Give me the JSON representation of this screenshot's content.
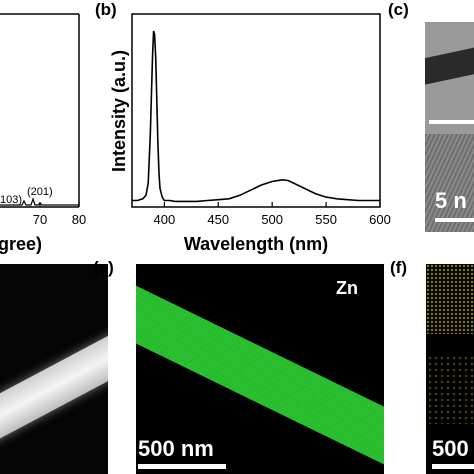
{
  "panel_labels": {
    "b": "(b)",
    "c": "(c)",
    "e": "(e)",
    "f": "(f)"
  },
  "panel_a": {
    "xlabel": "gree)",
    "xticks": [
      "70",
      "80"
    ],
    "peak_labels": [
      "103)",
      "(201)"
    ]
  },
  "panel_c": {
    "scale_label": "5 n"
  },
  "panel_e": {
    "element_label": "Zn",
    "scale_label": "500 nm"
  },
  "panel_f": {
    "scale_label": "500"
  },
  "colors": {
    "eds_green": "#25b82a",
    "eds_yellow": "#c8c020",
    "tem_bg": "#8a8a8a"
  },
  "chart_data": [
    {
      "type": "line",
      "panel": "(b)",
      "xlabel": "Wavelength (nm)",
      "ylabel": "Intensity (a.u.)",
      "xlim": [
        370,
        600
      ],
      "xticks": [
        "400",
        "450",
        "500",
        "550",
        "600"
      ],
      "x": [
        370,
        375,
        380,
        383,
        385,
        387,
        389,
        390,
        391,
        392,
        393,
        394,
        395,
        396,
        398,
        400,
        405,
        410,
        420,
        430,
        440,
        450,
        460,
        470,
        480,
        490,
        500,
        505,
        510,
        515,
        520,
        530,
        540,
        550,
        560,
        570,
        580,
        590,
        600
      ],
      "y": [
        0.02,
        0.02,
        0.03,
        0.05,
        0.12,
        0.4,
        0.85,
        1.0,
        0.98,
        0.85,
        0.6,
        0.35,
        0.18,
        0.09,
        0.04,
        0.02,
        0.02,
        0.015,
        0.015,
        0.015,
        0.02,
        0.025,
        0.03,
        0.05,
        0.08,
        0.11,
        0.13,
        0.135,
        0.14,
        0.135,
        0.12,
        0.09,
        0.06,
        0.04,
        0.03,
        0.025,
        0.02,
        0.02,
        0.02
      ]
    }
  ]
}
